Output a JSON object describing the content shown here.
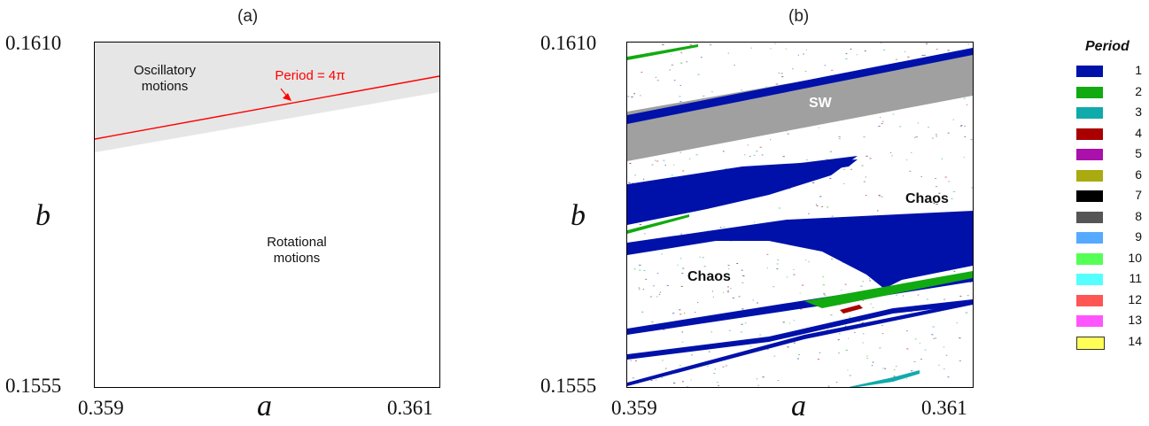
{
  "panel_a": {
    "title": "(a)",
    "y_top": "0.1610",
    "y_bottom": "0.1555",
    "x_left": "0.359",
    "x_right": "0.361",
    "xlabel": "a",
    "ylabel": "b",
    "oscillatory_label": "Oscillatory motions",
    "rotational_label": "Rotational motions",
    "period_label": "Period = 4π",
    "colors": {
      "oscillatory_fill": "#e6e6e6",
      "period_line": "#ff0000"
    }
  },
  "panel_b": {
    "title": "(b)",
    "y_top": "0.1610",
    "y_bottom": "0.1555",
    "x_left": "0.359",
    "x_right": "0.361",
    "xlabel": "a",
    "ylabel": "b",
    "sw_label": "SW",
    "chaos_label_1": "Chaos",
    "chaos_label_2": "Chaos"
  },
  "legend": {
    "title": "Period",
    "items": [
      {
        "label": "1",
        "color": "#0011aa"
      },
      {
        "label": "2",
        "color": "#11aa11"
      },
      {
        "label": "3",
        "color": "#11aaaa"
      },
      {
        "label": "4",
        "color": "#aa0000"
      },
      {
        "label": "5",
        "color": "#aa11aa"
      },
      {
        "label": "6",
        "color": "#aaaa11"
      },
      {
        "label": "7",
        "color": "#000000"
      },
      {
        "label": "8",
        "color": "#555555"
      },
      {
        "label": "9",
        "color": "#55aaff"
      },
      {
        "label": "10",
        "color": "#55ff55"
      },
      {
        "label": "11",
        "color": "#55ffff"
      },
      {
        "label": "12",
        "color": "#ff5555"
      },
      {
        "label": "13",
        "color": "#ff55ff"
      },
      {
        "label": "14",
        "color": "#ffff55"
      }
    ]
  },
  "chart_data": [
    {
      "type": "heatmap",
      "title": "(a)",
      "xlabel": "a",
      "ylabel": "b",
      "xlim": [
        0.359,
        0.361
      ],
      "ylim": [
        0.1555,
        0.161
      ],
      "regions": [
        {
          "name": "Oscillatory motions",
          "boundary_lower": [
            [
              0.359,
              0.1595
            ],
            [
              0.361,
              0.1601
            ]
          ]
        },
        {
          "name": "Rotational motions"
        }
      ],
      "period_4pi_line": [
        [
          0.359,
          0.1597
        ],
        [
          0.361,
          0.16032
        ]
      ]
    },
    {
      "type": "heatmap",
      "title": "(b)",
      "xlabel": "a",
      "ylabel": "b",
      "xlim": [
        0.359,
        0.361
      ],
      "ylim": [
        0.1555,
        0.161
      ],
      "legend": "right",
      "regions": [
        "SW",
        "Chaos",
        "Chaos"
      ]
    }
  ]
}
